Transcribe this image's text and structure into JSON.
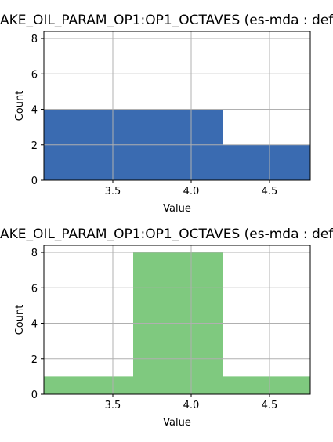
{
  "chart_data": [
    {
      "type": "histogram",
      "title": "AKE_OIL_PARAM_OP1:OP1_OCTAVES (es-mda : def",
      "xlabel": "Value",
      "ylabel": "Count",
      "xlim": [
        3.06,
        4.76
      ],
      "ylim": [
        0,
        8.4
      ],
      "xticks": [
        3.5,
        4.0,
        4.5
      ],
      "xtick_labels": [
        "3.5",
        "4.0",
        "4.5"
      ],
      "yticks": [
        0,
        2,
        4,
        6,
        8
      ],
      "ytick_labels": [
        "0",
        "2",
        "4",
        "6",
        "8"
      ],
      "grid": true,
      "color": "#3a6bb1",
      "bins": [
        {
          "x0": 3.06,
          "x1": 4.2,
          "count": 4
        },
        {
          "x0": 4.2,
          "x1": 4.76,
          "count": 2
        }
      ]
    },
    {
      "type": "histogram",
      "title": "AKE_OIL_PARAM_OP1:OP1_OCTAVES (es-mda : def",
      "xlabel": "Value",
      "ylabel": "Count",
      "xlim": [
        3.06,
        4.76
      ],
      "ylim": [
        0,
        8.4
      ],
      "xticks": [
        3.5,
        4.0,
        4.5
      ],
      "xtick_labels": [
        "3.5",
        "4.0",
        "4.5"
      ],
      "yticks": [
        0,
        2,
        4,
        6,
        8
      ],
      "ytick_labels": [
        "0",
        "2",
        "4",
        "6",
        "8"
      ],
      "grid": true,
      "color": "#7fc97f",
      "bins": [
        {
          "x0": 3.06,
          "x1": 3.63,
          "count": 1
        },
        {
          "x0": 3.63,
          "x1": 4.2,
          "count": 8
        },
        {
          "x0": 4.2,
          "x1": 4.76,
          "count": 1
        }
      ]
    }
  ]
}
